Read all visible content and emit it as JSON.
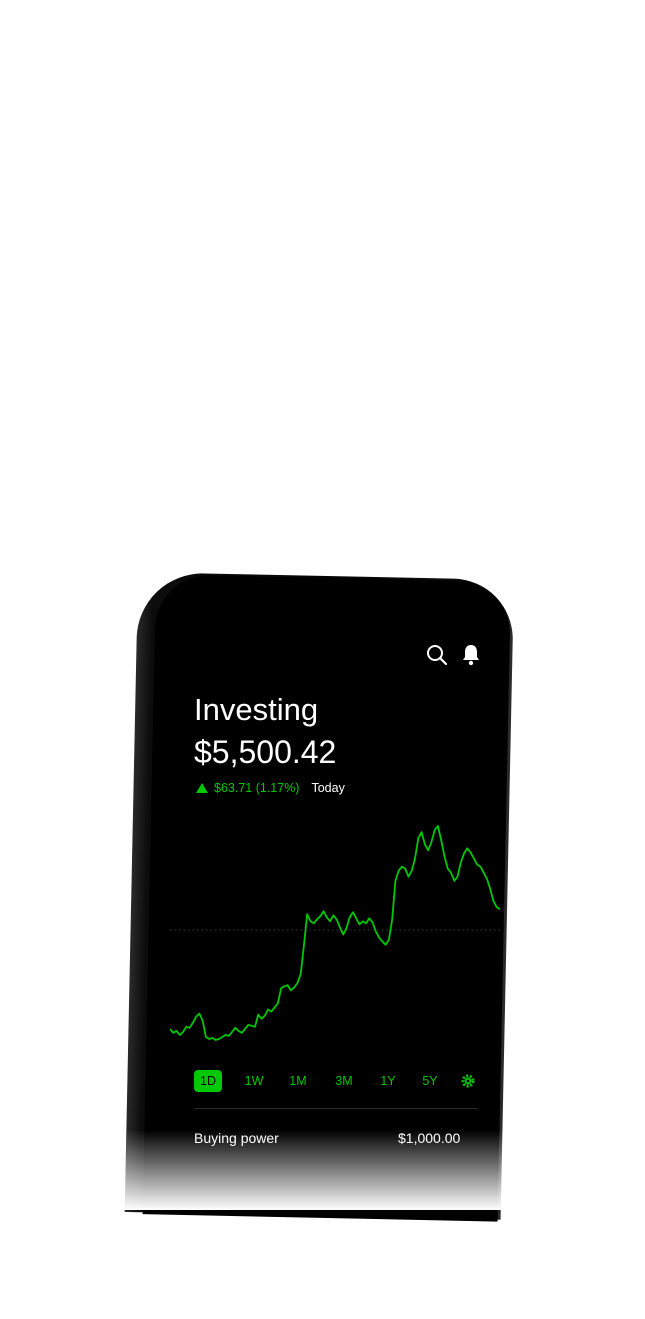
{
  "header": {
    "title": "Investing",
    "portfolio_value": "$5,500.42",
    "change_text": "$63.71 (1.17%)",
    "change_period": "Today"
  },
  "toolbar": {
    "search_icon": "search-icon",
    "notifications_icon": "bell-icon"
  },
  "colors": {
    "accent": "#00c805",
    "background": "#000000",
    "text": "#ffffff"
  },
  "chart_data": {
    "type": "line",
    "title": "",
    "xlabel": "",
    "ylabel": "",
    "grid": false,
    "baseline": "dotted reference line (previous close)",
    "series": [
      {
        "values": [
          12,
          8,
          10,
          6,
          9,
          14,
          13,
          18,
          24,
          27,
          20,
          4,
          2,
          3,
          1,
          2,
          4,
          6,
          5,
          9,
          13,
          10,
          8,
          12,
          16,
          15,
          14,
          26,
          22,
          25,
          31,
          29,
          33,
          37,
          52,
          54,
          55,
          50,
          53,
          57,
          66,
          95,
          125,
          118,
          116,
          120,
          123,
          128,
          122,
          118,
          124,
          120,
          112,
          105,
          111,
          122,
          127,
          121,
          115,
          118,
          116,
          121,
          117,
          108,
          102,
          98,
          95,
          100,
          120,
          158,
          168,
          172,
          170,
          162,
          168,
          180,
          200,
          206,
          194,
          188,
          196,
          208,
          212,
          198,
          182,
          170,
          166,
          158,
          162,
          176,
          185,
          190,
          186,
          180,
          174,
          172,
          166,
          160,
          150,
          138,
          132,
          130
        ]
      }
    ]
  },
  "ranges": {
    "items": [
      "1D",
      "1W",
      "1M",
      "3M",
      "1Y",
      "5Y"
    ],
    "active": "1D",
    "settings_icon": "gear-icon"
  },
  "buying_power": {
    "label": "Buying power",
    "value": "$1,000.00"
  }
}
